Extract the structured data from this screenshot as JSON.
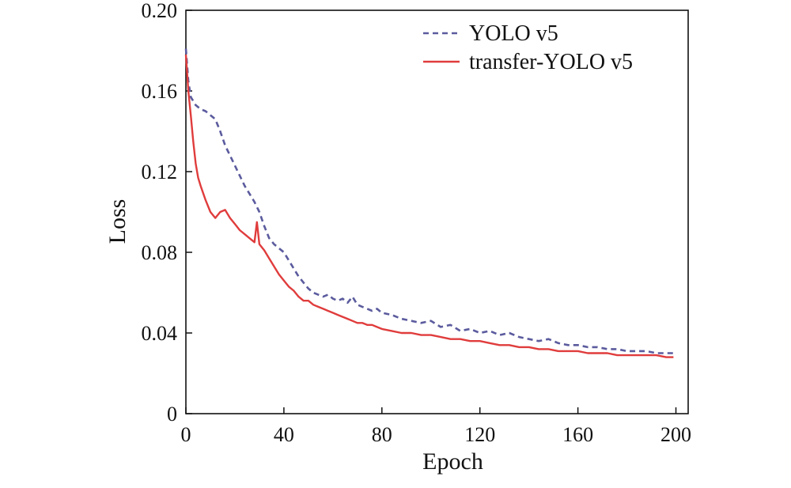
{
  "chart_data": {
    "type": "line",
    "title": "",
    "xlabel": "Epoch",
    "ylabel": "Loss",
    "xlim": [
      0,
      205
    ],
    "ylim": [
      0,
      0.2
    ],
    "xticks": [
      0,
      40,
      80,
      120,
      160,
      200
    ],
    "yticks": [
      0,
      0.04,
      0.08,
      0.12,
      0.16,
      0.2
    ],
    "xtick_labels": [
      "0",
      "40",
      "80",
      "120",
      "160",
      "200"
    ],
    "ytick_labels": [
      "0",
      "0.04",
      "0.08",
      "0.12",
      "0.16",
      "0.20"
    ],
    "grid": false,
    "legend_position": "top-right",
    "series": [
      {
        "name": "YOLO v5",
        "color": "#5b5b9e",
        "style": "dashed",
        "x": [
          0,
          1,
          2,
          4,
          6,
          8,
          10,
          12,
          14,
          16,
          18,
          20,
          22,
          24,
          26,
          28,
          30,
          32,
          34,
          36,
          38,
          40,
          42,
          44,
          46,
          48,
          50,
          52,
          54,
          56,
          58,
          60,
          62,
          64,
          66,
          68,
          70,
          72,
          74,
          76,
          78,
          80,
          84,
          88,
          92,
          96,
          100,
          104,
          108,
          112,
          116,
          120,
          124,
          128,
          132,
          136,
          140,
          144,
          148,
          152,
          156,
          160,
          164,
          168,
          172,
          176,
          180,
          184,
          188,
          192,
          196,
          199
        ],
        "y": [
          0.181,
          0.165,
          0.157,
          0.153,
          0.151,
          0.15,
          0.148,
          0.146,
          0.14,
          0.133,
          0.128,
          0.123,
          0.118,
          0.113,
          0.109,
          0.105,
          0.1,
          0.093,
          0.087,
          0.084,
          0.082,
          0.08,
          0.076,
          0.072,
          0.068,
          0.065,
          0.062,
          0.06,
          0.059,
          0.058,
          0.059,
          0.057,
          0.056,
          0.057,
          0.055,
          0.058,
          0.054,
          0.053,
          0.052,
          0.051,
          0.052,
          0.05,
          0.049,
          0.047,
          0.046,
          0.045,
          0.046,
          0.043,
          0.044,
          0.041,
          0.042,
          0.04,
          0.041,
          0.039,
          0.04,
          0.038,
          0.037,
          0.036,
          0.037,
          0.035,
          0.034,
          0.034,
          0.033,
          0.033,
          0.032,
          0.032,
          0.031,
          0.031,
          0.031,
          0.03,
          0.03,
          0.03
        ]
      },
      {
        "name": "transfer-YOLO v5",
        "color": "#e03c3c",
        "style": "solid",
        "x": [
          0,
          1,
          2,
          3,
          4,
          5,
          6,
          8,
          10,
          12,
          14,
          16,
          18,
          20,
          22,
          24,
          26,
          28,
          29,
          30,
          32,
          34,
          36,
          38,
          40,
          42,
          44,
          46,
          48,
          50,
          52,
          54,
          56,
          58,
          60,
          62,
          64,
          66,
          68,
          70,
          72,
          74,
          76,
          78,
          80,
          84,
          88,
          92,
          96,
          100,
          104,
          108,
          112,
          116,
          120,
          124,
          128,
          132,
          136,
          140,
          144,
          148,
          152,
          156,
          160,
          164,
          168,
          172,
          176,
          180,
          184,
          188,
          192,
          196,
          199
        ],
        "y": [
          0.178,
          0.16,
          0.148,
          0.135,
          0.124,
          0.117,
          0.113,
          0.106,
          0.1,
          0.097,
          0.1,
          0.101,
          0.097,
          0.094,
          0.091,
          0.089,
          0.087,
          0.085,
          0.095,
          0.084,
          0.081,
          0.077,
          0.073,
          0.069,
          0.066,
          0.063,
          0.061,
          0.058,
          0.056,
          0.056,
          0.054,
          0.053,
          0.052,
          0.051,
          0.05,
          0.049,
          0.048,
          0.047,
          0.046,
          0.045,
          0.045,
          0.044,
          0.044,
          0.043,
          0.042,
          0.041,
          0.04,
          0.04,
          0.039,
          0.039,
          0.038,
          0.037,
          0.037,
          0.036,
          0.036,
          0.035,
          0.034,
          0.034,
          0.033,
          0.033,
          0.032,
          0.032,
          0.031,
          0.031,
          0.031,
          0.03,
          0.03,
          0.03,
          0.029,
          0.029,
          0.029,
          0.029,
          0.029,
          0.028,
          0.028
        ]
      }
    ]
  }
}
